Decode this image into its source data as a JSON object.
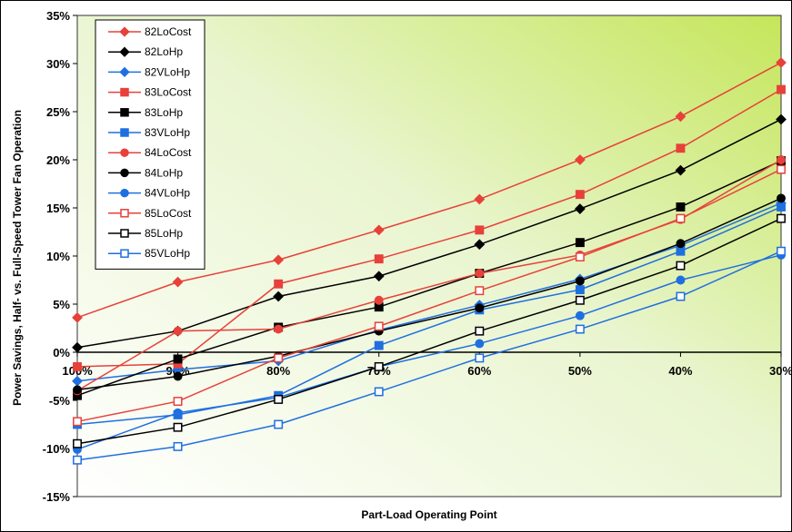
{
  "chart_data": {
    "type": "line",
    "xlabel": "Part-Load Operating Point",
    "ylabel": "Power Savings, Half- vs. Full-Speed Tower Fan Operation",
    "categories": [
      "100%",
      "90%",
      "80%",
      "70%",
      "60%",
      "50%",
      "40%",
      "30%"
    ],
    "y_ticks": [
      "-15%",
      "-10%",
      "-5%",
      "0%",
      "5%",
      "10%",
      "15%",
      "20%",
      "25%",
      "30%",
      "35%"
    ],
    "ylim": [
      -15,
      35
    ],
    "grid": false,
    "legend_position": "top-left",
    "series": [
      {
        "name": "82LoCost",
        "color": "#e8413a",
        "marker": "diamond",
        "fill": "filled",
        "values": [
          3.6,
          7.3,
          9.6,
          12.7,
          15.9,
          20.0,
          24.5,
          30.1
        ]
      },
      {
        "name": "82LoHp",
        "color": "#000000",
        "marker": "diamond",
        "fill": "filled",
        "values": [
          0.5,
          2.2,
          5.8,
          7.9,
          11.2,
          14.9,
          18.9,
          24.2
        ]
      },
      {
        "name": "82VLoHp",
        "color": "#1f6fe0",
        "marker": "diamond",
        "fill": "filled",
        "values": [
          -3.0,
          -1.8,
          -0.9,
          2.3,
          4.9,
          7.6,
          11.1,
          15.5
        ]
      },
      {
        "name": "83LoCost",
        "color": "#e8413a",
        "marker": "square",
        "fill": "filled",
        "values": [
          -1.5,
          -1.2,
          7.1,
          9.7,
          12.7,
          16.4,
          21.2,
          27.3
        ]
      },
      {
        "name": "83LoHp",
        "color": "#000000",
        "marker": "square",
        "fill": "filled",
        "values": [
          -4.5,
          -0.7,
          2.6,
          4.7,
          8.2,
          11.4,
          15.1,
          19.9
        ]
      },
      {
        "name": "83VLoHp",
        "color": "#1f6fe0",
        "marker": "square",
        "fill": "filled",
        "values": [
          -7.5,
          -6.5,
          -4.5,
          0.7,
          4.4,
          6.5,
          10.5,
          15.1
        ]
      },
      {
        "name": "84LoCost",
        "color": "#e8413a",
        "marker": "circle",
        "fill": "filled",
        "values": [
          -4.0,
          2.2,
          2.4,
          5.4,
          8.2,
          10.1,
          13.8,
          20.0
        ]
      },
      {
        "name": "84LoHp",
        "color": "#000000",
        "marker": "circle",
        "fill": "filled",
        "values": [
          -3.9,
          -2.5,
          -0.4,
          2.2,
          4.6,
          7.4,
          11.3,
          16.0
        ]
      },
      {
        "name": "84VLoHp",
        "color": "#1f6fe0",
        "marker": "circle",
        "fill": "filled",
        "values": [
          -10.1,
          -6.3,
          -4.7,
          -1.5,
          0.9,
          3.8,
          7.5,
          10.1
        ]
      },
      {
        "name": "85LoCost",
        "color": "#e8413a",
        "marker": "square",
        "fill": "open",
        "values": [
          -7.2,
          -5.1,
          -0.6,
          2.7,
          6.4,
          9.9,
          13.9,
          19.0
        ]
      },
      {
        "name": "85LoHp",
        "color": "#000000",
        "marker": "square",
        "fill": "open",
        "values": [
          -9.5,
          -7.8,
          -4.9,
          -1.5,
          2.2,
          5.4,
          9.0,
          13.9
        ]
      },
      {
        "name": "85VLoHp",
        "color": "#1f6fe0",
        "marker": "square",
        "fill": "open",
        "values": [
          -11.2,
          -9.8,
          -7.5,
          -4.1,
          -0.6,
          2.4,
          5.8,
          10.5
        ]
      }
    ]
  }
}
